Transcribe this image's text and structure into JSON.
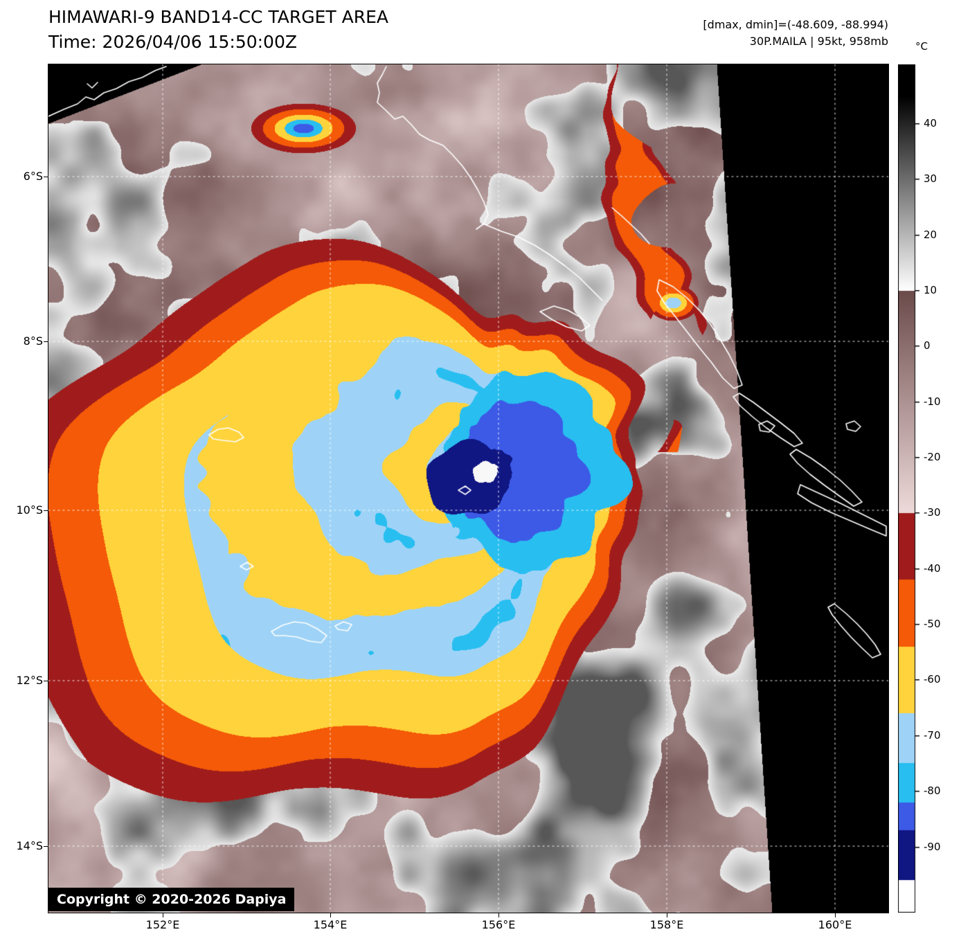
{
  "header": {
    "title": "HIMAWARI-9 BAND14-CC TARGET AREA",
    "time_line": "Time: 2026/04/06 15:50:00Z",
    "dmax_dmin": "[dmax, dmin]=(-48.609, -88.994)",
    "storm_info": "30P.MAILA | 95kt, 958mb"
  },
  "storm": {
    "id": "30P.MAILA",
    "intensity": "95kt",
    "pressure": "958mb",
    "dmax": -48.609,
    "dmin": -88.994
  },
  "map": {
    "copyright": "Copyright © 2020-2026 Dapiya",
    "lat_ticks": [
      "6°S",
      "8°S",
      "10°S",
      "12°S",
      "14°S"
    ],
    "lon_ticks": [
      "152°E",
      "154°E",
      "156°E",
      "158°E",
      "160°E"
    ]
  },
  "colorbar": {
    "unit": "°C",
    "tick_values": [
      40,
      30,
      20,
      10,
      0,
      -10,
      -20,
      -30,
      -40,
      -50,
      -60,
      -70,
      -80,
      -90
    ],
    "segments": [
      {
        "from": 200,
        "to": 45,
        "type": "solid",
        "color": "#000000"
      },
      {
        "from": 45,
        "to": 10,
        "type": "gradient",
        "colors": [
          "#000000",
          "#ffffff"
        ]
      },
      {
        "from": 10,
        "to": -30,
        "type": "gradient",
        "colors": [
          "#6b4a4a",
          "#eedada"
        ]
      },
      {
        "from": -30,
        "to": -42,
        "type": "solid",
        "color": "#a01c1c"
      },
      {
        "from": -42,
        "to": -54,
        "type": "solid",
        "color": "#f45a07"
      },
      {
        "from": -54,
        "to": -66,
        "type": "solid",
        "color": "#ffd33b"
      },
      {
        "from": -66,
        "to": -75,
        "type": "solid",
        "color": "#9ed3f7"
      },
      {
        "from": -75,
        "to": -82,
        "type": "solid",
        "color": "#28bef0"
      },
      {
        "from": -82,
        "to": -87,
        "type": "solid",
        "color": "#3c5ae6"
      },
      {
        "from": -87,
        "to": -96,
        "type": "solid",
        "color": "#101682"
      },
      {
        "from": -96,
        "to": -200,
        "type": "solid",
        "color": "#ffffff"
      }
    ]
  }
}
